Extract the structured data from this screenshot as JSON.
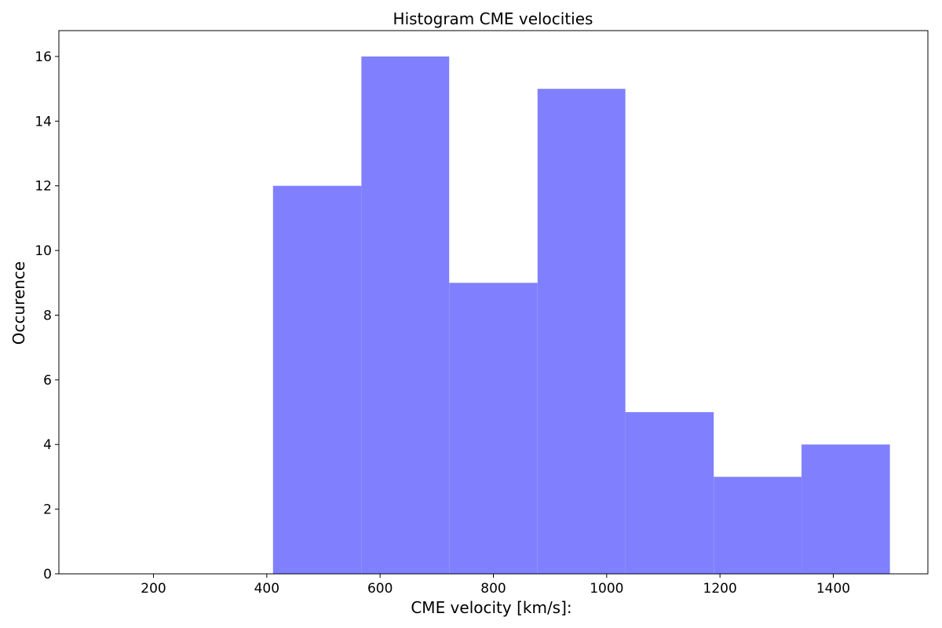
{
  "chart_data": {
    "type": "bar",
    "title": "Histogram CME velocities",
    "xlabel": "CME velocity [km/s]:",
    "ylabel": "Occurence",
    "bins": [
      {
        "x0": 411,
        "x1": 567,
        "count": 12
      },
      {
        "x0": 567,
        "x1": 722,
        "count": 16
      },
      {
        "x0": 722,
        "x1": 878,
        "count": 9
      },
      {
        "x0": 878,
        "x1": 1033,
        "count": 15
      },
      {
        "x0": 1033,
        "x1": 1189,
        "count": 5
      },
      {
        "x0": 1189,
        "x1": 1344,
        "count": 3
      },
      {
        "x0": 1344,
        "x1": 1500,
        "count": 4
      }
    ],
    "xlim": [
      33,
      1567
    ],
    "ylim": [
      0,
      16.8
    ],
    "xticks": [
      200,
      400,
      600,
      800,
      1000,
      1200,
      1400
    ],
    "yticks": [
      0,
      2,
      4,
      6,
      8,
      10,
      12,
      14,
      16
    ],
    "bar_color": "#8080ff",
    "grid": false,
    "legend": "none"
  }
}
